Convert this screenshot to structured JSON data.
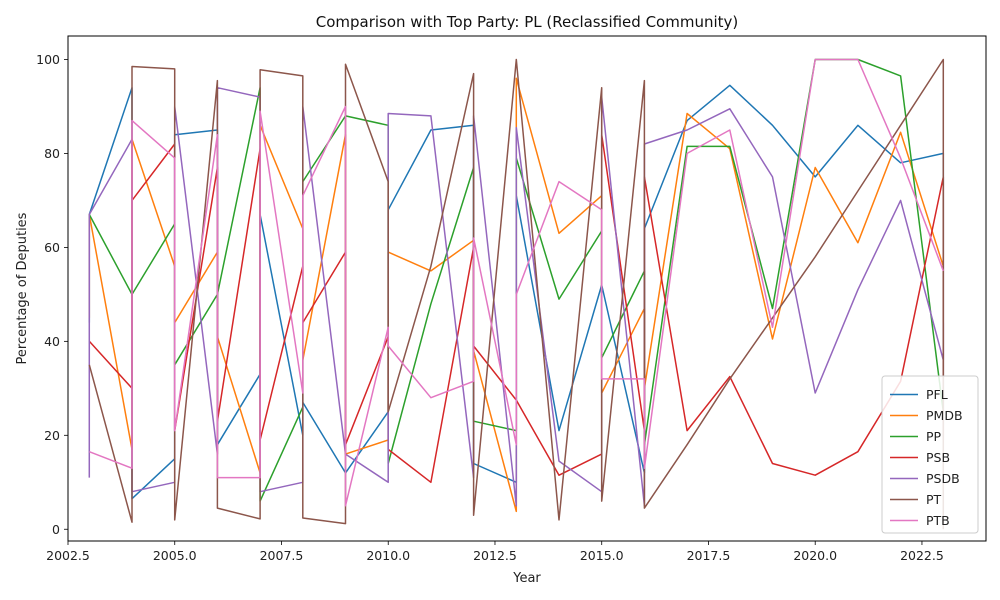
{
  "chart_data": {
    "type": "line",
    "title": "Comparison with Top Party: PL (Reclassified Community)",
    "xlabel": "Year",
    "ylabel": "Percentage of Deputies",
    "xlim": [
      2002.5,
      2024.0
    ],
    "ylim": [
      -2.5,
      105
    ],
    "xticks": [
      2002.5,
      2005.0,
      2007.5,
      2010.0,
      2012.5,
      2015.0,
      2017.5,
      2020.0,
      2022.5
    ],
    "xtick_labels": [
      "2002.5",
      "2005.0",
      "2007.5",
      "2010.0",
      "2012.5",
      "2015.0",
      "2017.5",
      "2020.0",
      "2022.5"
    ],
    "yticks": [
      0,
      20,
      40,
      60,
      80,
      100
    ],
    "ytick_labels": [
      "0",
      "20",
      "40",
      "60",
      "80",
      "100"
    ],
    "grid": false,
    "legend_position": "lower-right",
    "series": [
      {
        "name": "PFL",
        "color": "#1f77b4",
        "points": [
          [
            2003,
            44
          ],
          [
            2003,
            67
          ],
          [
            2004,
            94
          ],
          [
            2004,
            6.5
          ],
          [
            2005,
            15
          ],
          [
            2005,
            84
          ],
          [
            2006,
            85
          ],
          [
            2006,
            18
          ],
          [
            2007,
            33
          ],
          [
            2007,
            67
          ],
          [
            2008,
            20
          ],
          [
            2008,
            27
          ],
          [
            2009,
            12
          ],
          [
            2010,
            25
          ],
          [
            2010,
            68
          ],
          [
            2011,
            85
          ],
          [
            2012,
            86
          ],
          [
            2012,
            14
          ],
          [
            2013,
            10
          ],
          [
            2013,
            71
          ],
          [
            2014,
            21
          ],
          [
            2015,
            52
          ],
          [
            2016,
            12
          ],
          [
            2016,
            64
          ],
          [
            2017,
            87
          ],
          [
            2018,
            94.5
          ],
          [
            2019,
            86
          ],
          [
            2020,
            75
          ],
          [
            2021,
            86
          ],
          [
            2022,
            78
          ],
          [
            2023,
            80
          ],
          [
            2023,
            22
          ]
        ]
      },
      {
        "name": "PMDB",
        "color": "#ff7f0e",
        "points": [
          [
            2003,
            45
          ],
          [
            2003,
            67
          ],
          [
            2004,
            17
          ],
          [
            2004,
            83
          ],
          [
            2005,
            56
          ],
          [
            2005,
            44
          ],
          [
            2006,
            59
          ],
          [
            2006,
            41
          ],
          [
            2007,
            12
          ],
          [
            2007,
            86
          ],
          [
            2008,
            64
          ],
          [
            2008,
            36
          ],
          [
            2009,
            84
          ],
          [
            2009,
            16
          ],
          [
            2010,
            19
          ],
          [
            2010,
            59
          ],
          [
            2011,
            55
          ],
          [
            2012,
            61.5
          ],
          [
            2012,
            38
          ],
          [
            2013,
            3.8
          ],
          [
            2013,
            96
          ],
          [
            2014,
            63
          ],
          [
            2015,
            71
          ],
          [
            2015,
            29
          ],
          [
            2016,
            47
          ],
          [
            2016,
            30
          ],
          [
            2017,
            88.5
          ],
          [
            2018,
            81
          ],
          [
            2019,
            40.5
          ],
          [
            2020,
            77
          ],
          [
            2021,
            61
          ],
          [
            2022,
            84.5
          ],
          [
            2023,
            56
          ]
        ]
      },
      {
        "name": "PP",
        "color": "#2ca02c",
        "points": [
          [
            2003,
            67
          ],
          [
            2004,
            50
          ],
          [
            2005,
            65
          ],
          [
            2005,
            35
          ],
          [
            2006,
            50
          ],
          [
            2007,
            94
          ],
          [
            2007,
            6
          ],
          [
            2008,
            26
          ],
          [
            2008,
            74
          ],
          [
            2009,
            88
          ],
          [
            2010,
            86
          ],
          [
            2010,
            14
          ],
          [
            2011,
            48
          ],
          [
            2012,
            77
          ],
          [
            2012,
            23
          ],
          [
            2013,
            21
          ],
          [
            2013,
            79
          ],
          [
            2014,
            49
          ],
          [
            2015,
            63.5
          ],
          [
            2015,
            36.5
          ],
          [
            2016,
            55
          ],
          [
            2016,
            18
          ],
          [
            2017,
            81.5
          ],
          [
            2018,
            81.5
          ],
          [
            2019,
            47
          ],
          [
            2020,
            100
          ],
          [
            2021,
            100
          ],
          [
            2022,
            96.5
          ],
          [
            2023,
            25
          ]
        ]
      },
      {
        "name": "PSB",
        "color": "#d62728",
        "points": [
          [
            2003,
            40
          ],
          [
            2004,
            30
          ],
          [
            2004,
            70
          ],
          [
            2005,
            82
          ],
          [
            2005,
            21
          ],
          [
            2006,
            77
          ],
          [
            2006,
            23
          ],
          [
            2007,
            81
          ],
          [
            2007,
            19
          ],
          [
            2008,
            56
          ],
          [
            2008,
            44
          ],
          [
            2009,
            59
          ],
          [
            2009,
            18
          ],
          [
            2010,
            41
          ],
          [
            2010,
            17
          ],
          [
            2011,
            10
          ],
          [
            2012,
            60
          ],
          [
            2012,
            39
          ],
          [
            2013,
            27.5
          ],
          [
            2014,
            11.5
          ],
          [
            2015,
            16
          ],
          [
            2015,
            84
          ],
          [
            2016,
            21
          ],
          [
            2016,
            75
          ],
          [
            2017,
            21
          ],
          [
            2018,
            32.5
          ],
          [
            2019,
            14
          ],
          [
            2020,
            11.5
          ],
          [
            2021,
            16.5
          ],
          [
            2022,
            31.5
          ],
          [
            2023,
            75
          ],
          [
            2023,
            19
          ]
        ]
      },
      {
        "name": "PSDB",
        "color": "#9467bd",
        "points": [
          [
            2003,
            11
          ],
          [
            2003,
            67
          ],
          [
            2004,
            83
          ],
          [
            2004,
            8
          ],
          [
            2005,
            10
          ],
          [
            2005,
            90
          ],
          [
            2006,
            16
          ],
          [
            2006,
            94
          ],
          [
            2007,
            92
          ],
          [
            2007,
            8
          ],
          [
            2008,
            10
          ],
          [
            2008,
            90
          ],
          [
            2009,
            16
          ],
          [
            2010,
            10
          ],
          [
            2010,
            88.5
          ],
          [
            2011,
            88
          ],
          [
            2012,
            11
          ],
          [
            2012,
            88
          ],
          [
            2013,
            5
          ],
          [
            2013,
            85.5
          ],
          [
            2014,
            14.5
          ],
          [
            2015,
            8
          ],
          [
            2015,
            92
          ],
          [
            2016,
            5
          ],
          [
            2016,
            82
          ],
          [
            2017,
            85
          ],
          [
            2018,
            89.5
          ],
          [
            2019,
            75
          ],
          [
            2020,
            29
          ],
          [
            2021,
            51
          ],
          [
            2022,
            70
          ],
          [
            2023,
            36
          ],
          [
            2023,
            44
          ]
        ]
      },
      {
        "name": "PT",
        "color": "#8c564b",
        "points": [
          [
            2003,
            35
          ],
          [
            2004,
            1.5
          ],
          [
            2004,
            98.5
          ],
          [
            2005,
            98
          ],
          [
            2005,
            2
          ],
          [
            2006,
            95.5
          ],
          [
            2006,
            4.5
          ],
          [
            2007,
            2.2
          ],
          [
            2007,
            97.8
          ],
          [
            2008,
            96.5
          ],
          [
            2008,
            2.4
          ],
          [
            2009,
            1.2
          ],
          [
            2009,
            99
          ],
          [
            2010,
            74
          ],
          [
            2010,
            25
          ],
          [
            2011,
            56
          ],
          [
            2012,
            97
          ],
          [
            2012,
            3
          ],
          [
            2013,
            100
          ],
          [
            2014,
            2
          ],
          [
            2015,
            94
          ],
          [
            2015,
            6
          ],
          [
            2016,
            95.5
          ],
          [
            2016,
            4.5
          ],
          [
            2017,
            18
          ],
          [
            2018,
            32
          ],
          [
            2019,
            45
          ],
          [
            2020,
            58
          ],
          [
            2021,
            72
          ],
          [
            2022,
            86
          ],
          [
            2023,
            100
          ],
          [
            2023,
            0
          ]
        ]
      },
      {
        "name": "PTB",
        "color": "#e377c2",
        "points": [
          [
            2003,
            16.5
          ],
          [
            2004,
            13
          ],
          [
            2004,
            87
          ],
          [
            2005,
            79
          ],
          [
            2005,
            21
          ],
          [
            2006,
            84
          ],
          [
            2006,
            11
          ],
          [
            2007,
            11
          ],
          [
            2007,
            89
          ],
          [
            2008,
            29
          ],
          [
            2008,
            71
          ],
          [
            2009,
            90
          ],
          [
            2009,
            5
          ],
          [
            2010,
            43
          ],
          [
            2010,
            39
          ],
          [
            2011,
            28
          ],
          [
            2012,
            31.5
          ],
          [
            2012,
            62
          ],
          [
            2013,
            18
          ],
          [
            2013,
            50
          ],
          [
            2014,
            74
          ],
          [
            2015,
            68
          ],
          [
            2015,
            32
          ],
          [
            2016,
            32
          ],
          [
            2016,
            13
          ],
          [
            2017,
            80
          ],
          [
            2018,
            85
          ],
          [
            2019,
            43
          ],
          [
            2020,
            100
          ],
          [
            2021,
            100
          ],
          [
            2022,
            79
          ],
          [
            2023,
            55
          ]
        ]
      }
    ]
  }
}
